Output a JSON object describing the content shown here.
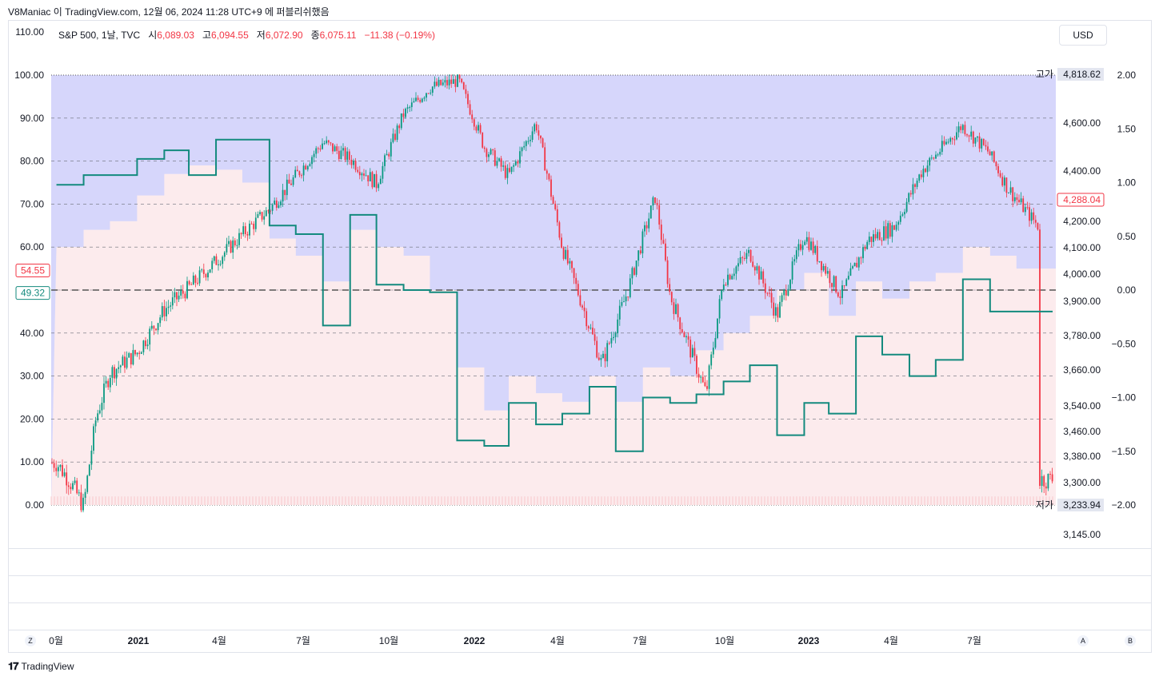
{
  "caption": "V8Maniac 이 TradingView.com, 12월 06, 2024 11:28 UTC+9 에 퍼블리쉬했음",
  "legend": {
    "symbol": "S&P 500, 1날, TVC",
    "o_label": "시",
    "o": "6,089.03",
    "h_label": "고",
    "h": "6,094.55",
    "l_label": "저",
    "l": "6,072.90",
    "c_label": "종",
    "c": "6,075.11",
    "chg": "−11.38 (−0.19%)"
  },
  "currency_button": "USD",
  "left_axis": {
    "ticks": [
      "110.00",
      "100.00",
      "90.00",
      "80.00",
      "70.00",
      "60.00",
      "50.00",
      "40.00",
      "30.00",
      "20.00",
      "10.00",
      "0.00"
    ],
    "label_red": "54.55",
    "label_green": "49.32"
  },
  "right_price_axis": {
    "ticks": [
      "4,600.00",
      "4,400.00",
      "4,200.00",
      "4,100.00",
      "4,000.00",
      "3,900.00",
      "3,780.00",
      "3,660.00",
      "3,540.00",
      "3,460.00",
      "3,380.00",
      "3,300.00",
      "3,145.00"
    ],
    "high_label": "고가",
    "high_value": "4,818.62",
    "low_label": "저가",
    "low_value": "3,233.94",
    "last_value": "4,288.04"
  },
  "osc_axis": {
    "ticks": [
      "2.00",
      "1.50",
      "1.00",
      "0.50",
      "0.00",
      "−0.50",
      "−1.00",
      "−1.50",
      "−2.00"
    ]
  },
  "time_axis": {
    "labels": [
      "0월",
      "2021",
      "4월",
      "7월",
      "10월",
      "2022",
      "4월",
      "7월",
      "10월",
      "2023",
      "4월",
      "7월"
    ],
    "bold": [
      false,
      true,
      false,
      false,
      false,
      true,
      false,
      false,
      false,
      true,
      false,
      false
    ]
  },
  "bottom_buttons": {
    "z": "Z",
    "a": "A",
    "b": "B"
  },
  "brand": "TradingView",
  "colors": {
    "up": "#089981",
    "down": "#f23645",
    "step": "#138a7e",
    "band": "#d6d6fb",
    "volume": "#f7c7cb",
    "axis_text": "#131722"
  },
  "chart_data": {
    "type": "line",
    "title": "S&P 500, 1날, TVC",
    "price_range": [
      3145,
      4818.62
    ],
    "x_range": [
      "2020-10",
      "2023-11"
    ],
    "price_series": {
      "x": [
        "2020-10-01",
        "2020-10-15",
        "2020-11-01",
        "2020-11-15",
        "2020-12-01",
        "2021-01-01",
        "2021-02-01",
        "2021-03-01",
        "2021-04-01",
        "2021-05-01",
        "2021-06-01",
        "2021-07-01",
        "2021-08-01",
        "2021-09-01",
        "2021-10-01",
        "2021-11-01",
        "2021-12-01",
        "2022-01-03",
        "2022-02-01",
        "2022-03-01",
        "2022-04-01",
        "2022-05-01",
        "2022-06-15",
        "2022-07-15",
        "2022-08-15",
        "2022-09-01",
        "2022-10-12",
        "2022-11-01",
        "2022-12-01",
        "2023-01-01",
        "2023-02-01",
        "2023-03-15",
        "2023-04-15",
        "2023-05-15",
        "2023-06-15",
        "2023-07-31",
        "2023-08-30",
        "2023-09-20",
        "2023-10-26"
      ],
      "close": [
        3360,
        3310,
        3230,
        3500,
        3650,
        3720,
        3870,
        3950,
        4050,
        4150,
        4250,
        4380,
        4520,
        4450,
        4350,
        4640,
        4760,
        4790,
        4500,
        4380,
        4600,
        4100,
        3680,
        3940,
        4300,
        3920,
        3580,
        3980,
        4080,
        3850,
        4150,
        3920,
        4130,
        4180,
        4400,
        4590,
        4480,
        4340,
        4180
      ]
    },
    "oscillator": {
      "range": [
        -2.0,
        2.0
      ],
      "steps_x": [
        "2020-10",
        "2020-11",
        "2020-12",
        "2021-01",
        "2021-02",
        "2021-03",
        "2021-04",
        "2021-05",
        "2021-06",
        "2021-07",
        "2021-08",
        "2021-09",
        "2021-10",
        "2021-11",
        "2021-12",
        "2022-01",
        "2022-02",
        "2022-03",
        "2022-04",
        "2022-05",
        "2022-06",
        "2022-07",
        "2022-08",
        "2022-09",
        "2022-10",
        "2022-11",
        "2022-12",
        "2023-01",
        "2023-02",
        "2023-03",
        "2023-04",
        "2023-05",
        "2023-06",
        "2023-07",
        "2023-08",
        "2023-09",
        "2023-10"
      ],
      "steps_y": [
        0.98,
        1.07,
        1.07,
        1.22,
        1.3,
        1.07,
        1.4,
        1.4,
        0.6,
        0.52,
        -0.33,
        0.7,
        0.05,
        0.0,
        -0.02,
        -1.4,
        -1.45,
        -1.05,
        -1.25,
        -1.15,
        -0.9,
        -1.5,
        -1.0,
        -1.05,
        -0.97,
        -0.85,
        -0.7,
        -1.35,
        -1.05,
        -1.15,
        -0.43,
        -0.6,
        -0.8,
        -0.65,
        0.1,
        -0.2,
        -0.2
      ]
    },
    "band_range": [
      0,
      100
    ],
    "dashed_zero_line": 0.0,
    "legend_position": "top-left",
    "grid": true
  }
}
